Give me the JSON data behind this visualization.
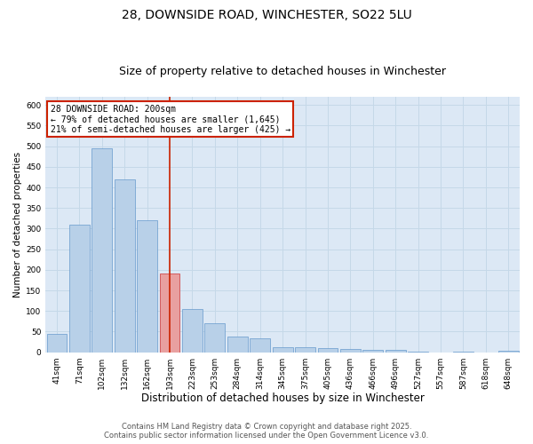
{
  "title": "28, DOWNSIDE ROAD, WINCHESTER, SO22 5LU",
  "subtitle": "Size of property relative to detached houses in Winchester",
  "xlabel": "Distribution of detached houses by size in Winchester",
  "ylabel": "Number of detached properties",
  "categories": [
    "41sqm",
    "71sqm",
    "102sqm",
    "132sqm",
    "162sqm",
    "193sqm",
    "223sqm",
    "253sqm",
    "284sqm",
    "314sqm",
    "345sqm",
    "375sqm",
    "405sqm",
    "436sqm",
    "466sqm",
    "496sqm",
    "527sqm",
    "557sqm",
    "587sqm",
    "618sqm",
    "648sqm"
  ],
  "values": [
    45,
    310,
    495,
    420,
    320,
    190,
    105,
    70,
    38,
    33,
    13,
    13,
    10,
    8,
    6,
    5,
    1,
    0,
    1,
    0,
    3
  ],
  "bar_color": "#b8d0e8",
  "bar_edge_color": "#6699cc",
  "highlight_index": 5,
  "highlight_bar_color": "#e8a0a0",
  "highlight_edge_color": "#cc3333",
  "vline_color": "#cc2200",
  "annotation_title": "28 DOWNSIDE ROAD: 200sqm",
  "annotation_line1": "← 79% of detached houses are smaller (1,645)",
  "annotation_line2": "21% of semi-detached houses are larger (425) →",
  "annotation_box_edgecolor": "#cc2200",
  "ylim": [
    0,
    620
  ],
  "yticks": [
    0,
    50,
    100,
    150,
    200,
    250,
    300,
    350,
    400,
    450,
    500,
    550,
    600
  ],
  "grid_color": "#c5d8e8",
  "background_color": "#dce8f5",
  "footer_line1": "Contains HM Land Registry data © Crown copyright and database right 2025.",
  "footer_line2": "Contains public sector information licensed under the Open Government Licence v3.0.",
  "title_fontsize": 10,
  "subtitle_fontsize": 9,
  "tick_fontsize": 6.5,
  "xlabel_fontsize": 8.5,
  "ylabel_fontsize": 7.5,
  "annotation_fontsize": 7,
  "footer_fontsize": 6
}
